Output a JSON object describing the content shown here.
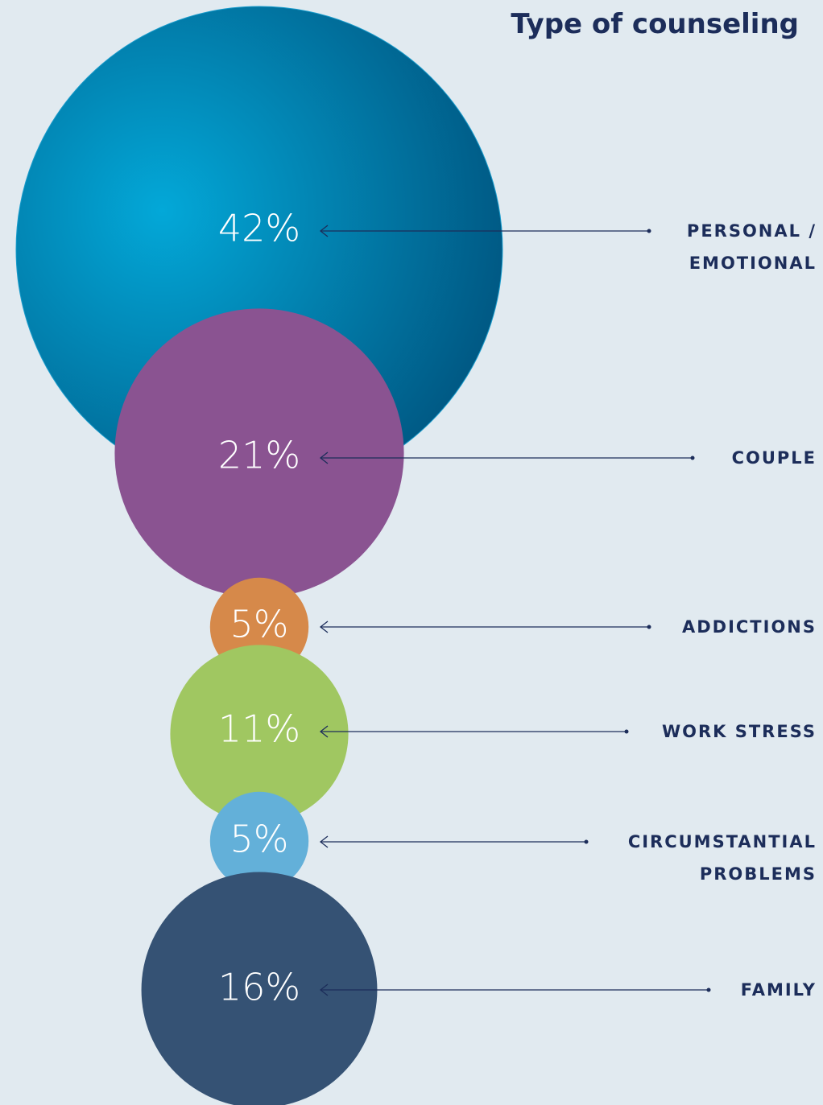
{
  "chart_data": {
    "type": "bubble",
    "title": "Type of counseling",
    "categories": [
      "PERSONAL / EMOTIONAL",
      "COUPLE",
      "ADDICTIONS",
      "WORK STRESS",
      "CIRCUMSTANTIAL PROBLEMS",
      "FAMILY"
    ],
    "values": [
      42,
      21,
      5,
      11,
      5,
      16
    ],
    "value_labels": [
      "42%",
      "21%",
      "5%",
      "11%",
      "5%",
      "16%"
    ],
    "colors": [
      "#0e86b6",
      "#8a5391",
      "#d6894a",
      "#a0c761",
      "#63b0d9",
      "#355274"
    ]
  }
}
